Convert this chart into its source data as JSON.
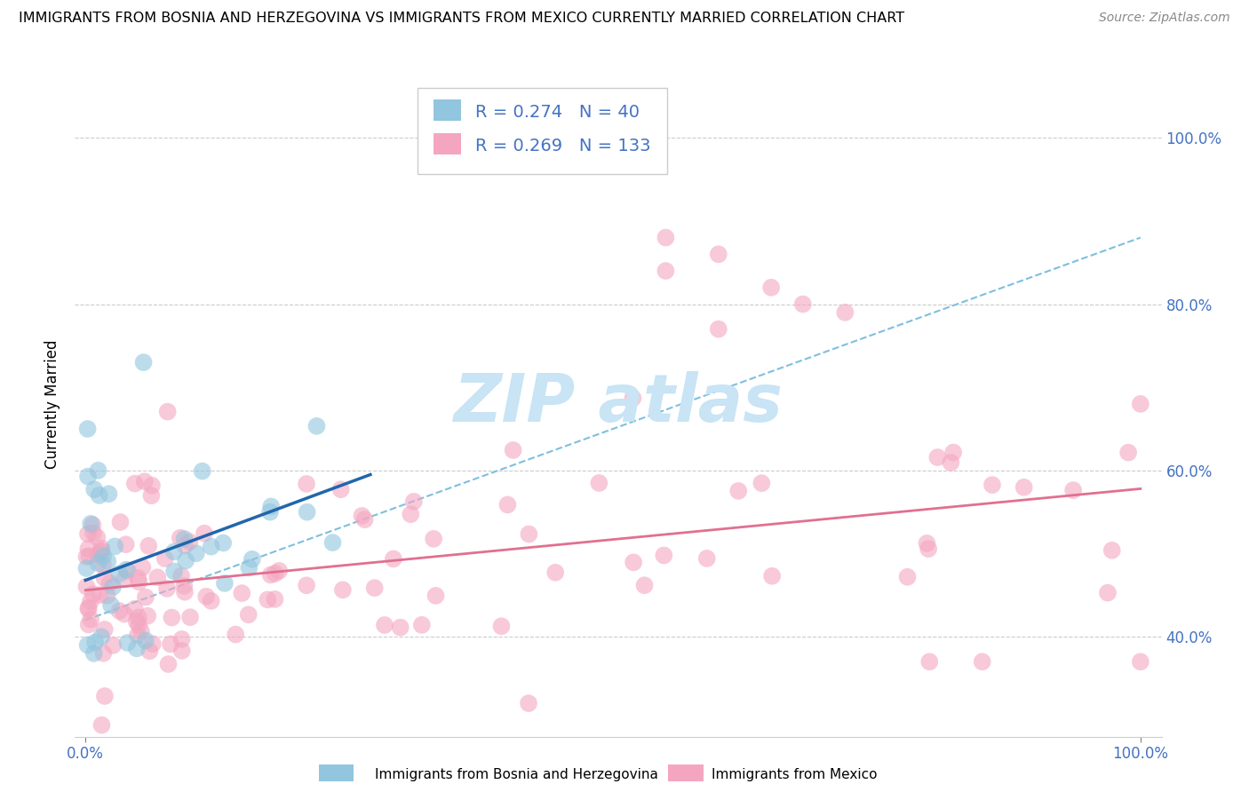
{
  "title": "IMMIGRANTS FROM BOSNIA AND HERZEGOVINA VS IMMIGRANTS FROM MEXICO CURRENTLY MARRIED CORRELATION CHART",
  "source": "Source: ZipAtlas.com",
  "ylabel": "Currently Married",
  "legend_label1": "Immigrants from Bosnia and Herzegovina",
  "legend_label2": "Immigrants from Mexico",
  "R1": "0.274",
  "N1": "40",
  "R2": "0.269",
  "N2": "133",
  "color_blue": "#92c5de",
  "color_pink": "#f4a6c0",
  "color_blue_line": "#2166ac",
  "color_pink_line": "#e07090",
  "color_dashed": "#7fbfdf",
  "watermark_color": "#c8e4f5",
  "xlim": [
    -0.01,
    1.02
  ],
  "ylim": [
    0.28,
    1.08
  ],
  "ytick_vals": [
    0.4,
    0.6,
    0.8,
    1.0
  ],
  "ytick_labels": [
    "40.0%",
    "60.0%",
    "80.0%",
    "100.0%"
  ],
  "grid_vals": [
    0.4,
    0.6,
    0.8,
    1.0
  ],
  "bosnia_line_x": [
    0.0,
    0.27
  ],
  "bosnia_line_y": [
    0.468,
    0.595
  ],
  "mexico_line_x": [
    0.0,
    1.0
  ],
  "mexico_line_y": [
    0.456,
    0.578
  ],
  "dashed_line_x": [
    0.0,
    1.0
  ],
  "dashed_line_y": [
    0.42,
    0.88
  ]
}
